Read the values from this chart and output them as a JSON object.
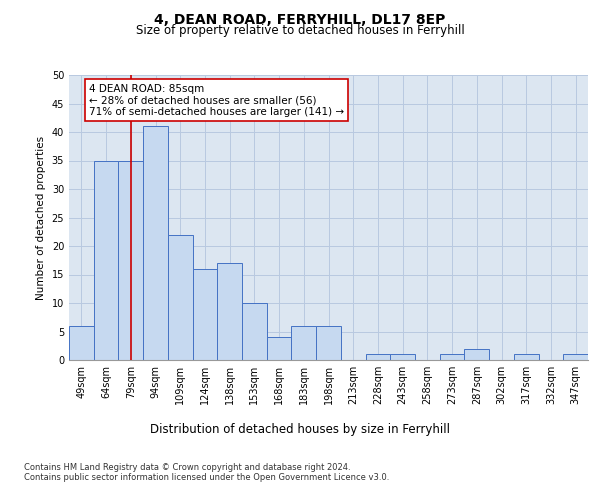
{
  "title": "4, DEAN ROAD, FERRYHILL, DL17 8EP",
  "subtitle": "Size of property relative to detached houses in Ferryhill",
  "xlabel": "Distribution of detached houses by size in Ferryhill",
  "ylabel": "Number of detached properties",
  "categories": [
    "49sqm",
    "64sqm",
    "79sqm",
    "94sqm",
    "109sqm",
    "124sqm",
    "138sqm",
    "153sqm",
    "168sqm",
    "183sqm",
    "198sqm",
    "213sqm",
    "228sqm",
    "243sqm",
    "258sqm",
    "273sqm",
    "287sqm",
    "302sqm",
    "317sqm",
    "332sqm",
    "347sqm"
  ],
  "values": [
    6,
    35,
    35,
    41,
    22,
    16,
    17,
    10,
    4,
    6,
    6,
    0,
    1,
    1,
    0,
    1,
    2,
    0,
    1,
    0,
    1
  ],
  "bar_color": "#c6d9f0",
  "bar_edge_color": "#4472c4",
  "grid_color": "#b8c9e0",
  "background_color": "#dce6f1",
  "property_line_color": "#cc0000",
  "property_line_x": 2.0,
  "annotation_text": "4 DEAN ROAD: 85sqm\n← 28% of detached houses are smaller (56)\n71% of semi-detached houses are larger (141) →",
  "annotation_box_facecolor": "#ffffff",
  "annotation_box_edgecolor": "#cc0000",
  "ylim": [
    0,
    50
  ],
  "yticks": [
    0,
    5,
    10,
    15,
    20,
    25,
    30,
    35,
    40,
    45,
    50
  ],
  "footnote1": "Contains HM Land Registry data © Crown copyright and database right 2024.",
  "footnote2": "Contains public sector information licensed under the Open Government Licence v3.0.",
  "title_fontsize": 10,
  "subtitle_fontsize": 8.5,
  "xlabel_fontsize": 8.5,
  "ylabel_fontsize": 7.5,
  "tick_fontsize": 7,
  "annot_fontsize": 7.5,
  "footnote_fontsize": 6
}
